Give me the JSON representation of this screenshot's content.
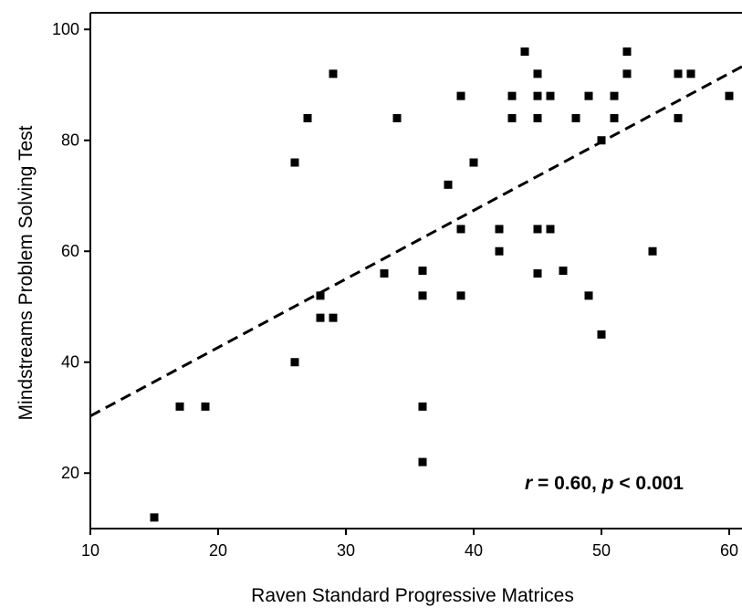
{
  "chart_data": {
    "type": "scatter",
    "xlabel": "Raven Standard Progressive Matrices",
    "ylabel": "Mindstreams Problem Solving Test",
    "xlim": [
      10,
      61
    ],
    "ylim": [
      10,
      103
    ],
    "x_ticks": [
      "10",
      "20",
      "30",
      "40",
      "50",
      "60"
    ],
    "y_ticks": [
      "20",
      "40",
      "60",
      "80",
      "100"
    ],
    "grid": false,
    "points": [
      {
        "x": 15,
        "y": 12
      },
      {
        "x": 17,
        "y": 32
      },
      {
        "x": 19,
        "y": 32
      },
      {
        "x": 26,
        "y": 40
      },
      {
        "x": 26,
        "y": 76
      },
      {
        "x": 27,
        "y": 84
      },
      {
        "x": 28,
        "y": 52
      },
      {
        "x": 28,
        "y": 48
      },
      {
        "x": 29,
        "y": 48
      },
      {
        "x": 29,
        "y": 92
      },
      {
        "x": 33,
        "y": 56
      },
      {
        "x": 34,
        "y": 84
      },
      {
        "x": 36,
        "y": 56.5
      },
      {
        "x": 36,
        "y": 52
      },
      {
        "x": 36,
        "y": 32
      },
      {
        "x": 36,
        "y": 22
      },
      {
        "x": 38,
        "y": 72
      },
      {
        "x": 39,
        "y": 88
      },
      {
        "x": 39,
        "y": 64
      },
      {
        "x": 39,
        "y": 52
      },
      {
        "x": 40,
        "y": 76
      },
      {
        "x": 42,
        "y": 64
      },
      {
        "x": 42,
        "y": 60
      },
      {
        "x": 43,
        "y": 88
      },
      {
        "x": 43,
        "y": 84
      },
      {
        "x": 44,
        "y": 96
      },
      {
        "x": 45,
        "y": 92
      },
      {
        "x": 45,
        "y": 88
      },
      {
        "x": 45,
        "y": 84
      },
      {
        "x": 45,
        "y": 64
      },
      {
        "x": 45,
        "y": 56
      },
      {
        "x": 46,
        "y": 88
      },
      {
        "x": 46,
        "y": 64
      },
      {
        "x": 47,
        "y": 56.5
      },
      {
        "x": 48,
        "y": 84
      },
      {
        "x": 49,
        "y": 88
      },
      {
        "x": 49,
        "y": 52
      },
      {
        "x": 50,
        "y": 80
      },
      {
        "x": 50,
        "y": 45
      },
      {
        "x": 51,
        "y": 88
      },
      {
        "x": 51,
        "y": 84
      },
      {
        "x": 52,
        "y": 96
      },
      {
        "x": 52,
        "y": 92
      },
      {
        "x": 54,
        "y": 60
      },
      {
        "x": 56,
        "y": 92
      },
      {
        "x": 56,
        "y": 84
      },
      {
        "x": 57,
        "y": 92
      },
      {
        "x": 60,
        "y": 88
      }
    ],
    "trend_line": {
      "style": "dashed",
      "x": [
        10,
        61
      ],
      "y": [
        30.3,
        93.3
      ]
    },
    "annotation": {
      "r_symbol": "r",
      "r_text": " = 0.60, ",
      "p_symbol": "p",
      "p_text": " < 0.001"
    }
  }
}
